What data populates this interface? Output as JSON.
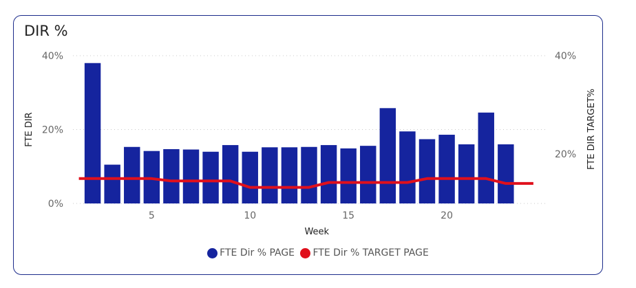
{
  "title": "DIR %",
  "colors": {
    "bar": "#15249e",
    "line": "#e0101c",
    "grid": "#c8c8c8",
    "border": "#1a2a8a"
  },
  "chart_data": {
    "type": "bar",
    "title": "DIR %",
    "xlabel": "Week",
    "ylabel": "FTE DIR",
    "y2label": "FTE DIR TARGET%",
    "x": [
      2,
      3,
      4,
      5,
      6,
      7,
      8,
      9,
      10,
      11,
      12,
      13,
      14,
      15,
      16,
      17,
      18,
      19,
      20,
      21,
      22,
      23
    ],
    "x_ticks": [
      5,
      10,
      15,
      20
    ],
    "xlim": [
      1,
      25
    ],
    "ylim": [
      0,
      40
    ],
    "y_ticks": [
      "0%",
      "20%",
      "40%"
    ],
    "y2lim": [
      0,
      40
    ],
    "y2_ticks": [
      "20%",
      "40%"
    ],
    "grid": true,
    "legend_position": "bottom",
    "series": [
      {
        "name": "FTE Dir % PAGE",
        "type": "bar",
        "axis": "left",
        "values": [
          38.0,
          10.5,
          15.3,
          14.2,
          14.7,
          14.6,
          14.0,
          15.8,
          14.0,
          15.2,
          15.2,
          15.3,
          15.8,
          14.9,
          15.6,
          25.8,
          19.5,
          17.4,
          18.6,
          16.0,
          24.6,
          16.0
        ]
      },
      {
        "name": "FTE Dir % TARGET PAGE",
        "type": "line",
        "axis": "right",
        "x": [
          1.3,
          2,
          3,
          4,
          5,
          6,
          7,
          8,
          9,
          10,
          11,
          12,
          13,
          14,
          15,
          16,
          17,
          18,
          19,
          20,
          21,
          22,
          23,
          24.4
        ],
        "values": [
          15.0,
          15.0,
          15.0,
          15.0,
          15.0,
          14.5,
          14.5,
          14.5,
          14.5,
          13.2,
          13.2,
          13.2,
          13.2,
          14.2,
          14.2,
          14.2,
          14.2,
          14.2,
          15.0,
          15.0,
          15.0,
          15.0,
          14.0,
          14.0
        ]
      }
    ]
  }
}
